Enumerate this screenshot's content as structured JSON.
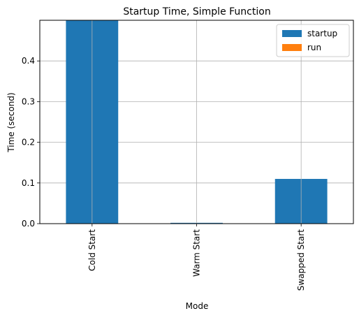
{
  "chart_data": {
    "type": "bar",
    "title": "Startup Time, Simple Function",
    "xlabel": "Mode",
    "ylabel": "Time (second)",
    "categories": [
      "Cold Start",
      "Warm Start",
      "Swapped Start"
    ],
    "series": [
      {
        "name": "startup",
        "color": "#1f77b4",
        "values": [
          0.5,
          0.002,
          0.11
        ]
      },
      {
        "name": "run",
        "color": "#ff7f0e",
        "values": [
          0,
          0,
          0
        ]
      }
    ],
    "stacked": true,
    "ylim": [
      0,
      0.5
    ],
    "yticks": [
      "0.0",
      "0.1",
      "0.2",
      "0.3",
      "0.4"
    ],
    "ytick_values": [
      0,
      0.1,
      0.2,
      0.3,
      0.4
    ],
    "grid": true,
    "legend_position": "top-right"
  }
}
